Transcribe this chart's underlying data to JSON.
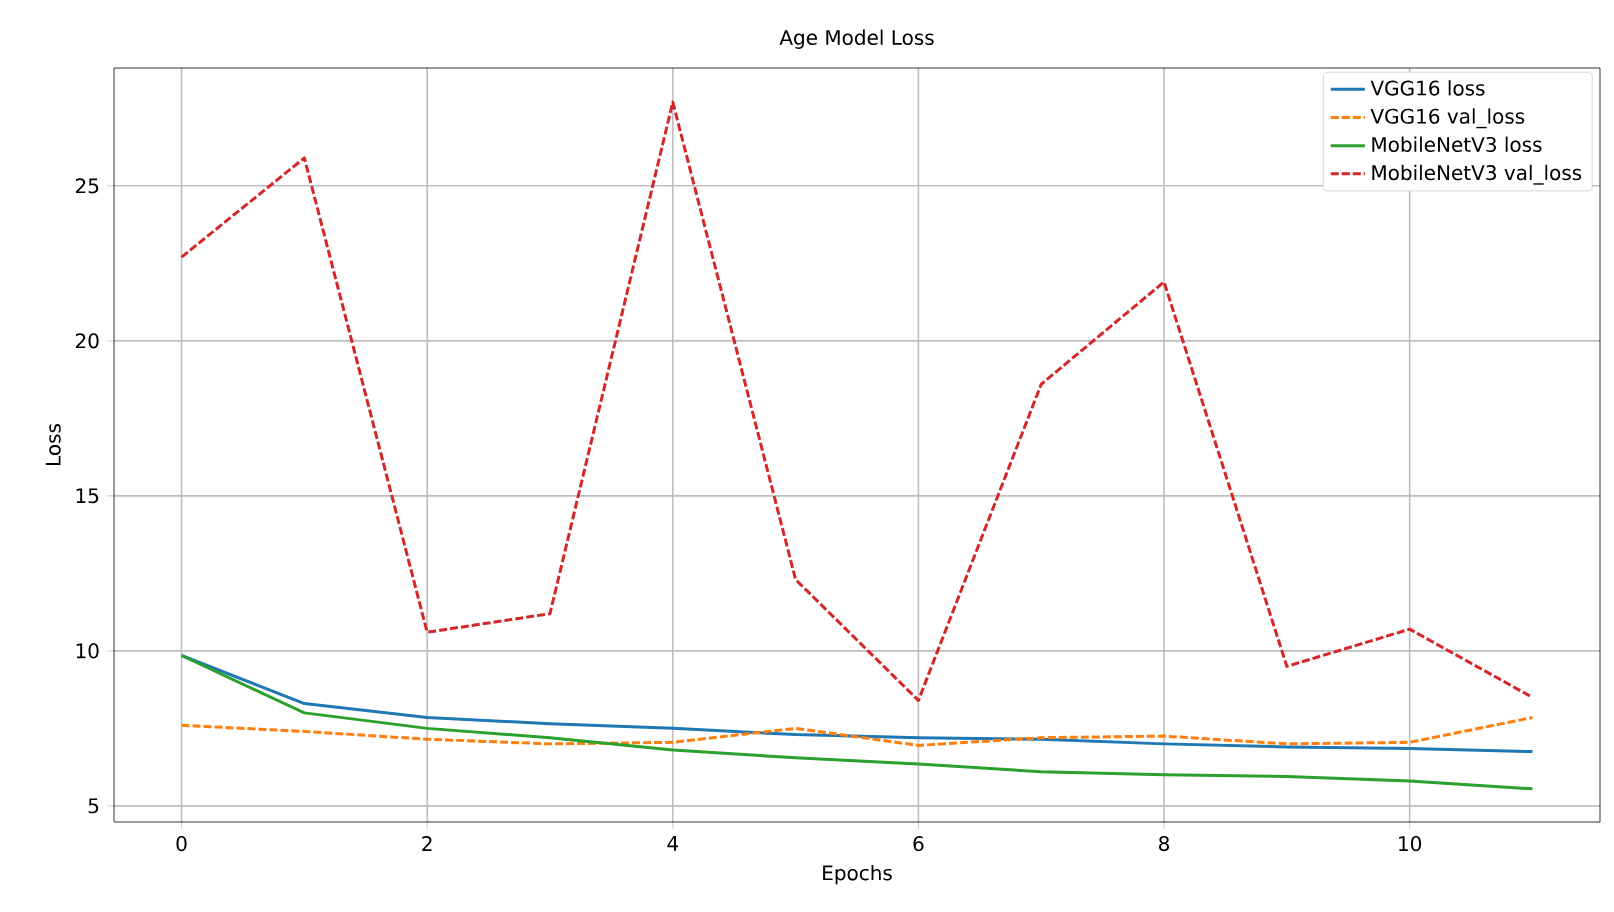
{
  "chart_data": {
    "type": "line",
    "title": "Age Model Loss",
    "xlabel": "Epochs",
    "ylabel": "Loss",
    "x": [
      0,
      1,
      2,
      3,
      4,
      5,
      6,
      7,
      8,
      9,
      10,
      11
    ],
    "series": [
      {
        "name": "VGG16 loss",
        "color": "#1f77b4",
        "line_style": "solid",
        "values": [
          9.85,
          8.3,
          7.85,
          7.65,
          7.5,
          7.3,
          7.2,
          7.15,
          7.0,
          6.9,
          6.85,
          6.75
        ]
      },
      {
        "name": "VGG16 val_loss",
        "color": "#ff7f0e",
        "line_style": "dashed",
        "values": [
          7.6,
          7.4,
          7.15,
          7.0,
          7.05,
          7.5,
          6.95,
          7.2,
          7.25,
          7.0,
          7.05,
          7.85
        ]
      },
      {
        "name": "MobileNetV3 loss",
        "color": "#2ca02c",
        "line_style": "solid",
        "values": [
          9.85,
          8.0,
          7.5,
          7.2,
          6.8,
          6.55,
          6.35,
          6.1,
          6.0,
          5.95,
          5.8,
          5.55
        ]
      },
      {
        "name": "MobileNetV3 val_loss",
        "color": "#d62728",
        "line_style": "dashed",
        "values": [
          22.7,
          25.9,
          10.6,
          11.2,
          27.7,
          12.3,
          8.4,
          18.6,
          21.9,
          9.5,
          10.7,
          8.5
        ]
      }
    ],
    "xlim": [
      -0.55,
      11.55
    ],
    "ylim": [
      4.48,
      28.8
    ],
    "xticks": [
      0,
      2,
      4,
      6,
      8,
      10
    ],
    "yticks": [
      5,
      10,
      15,
      20,
      25
    ],
    "grid": true,
    "legend": "top right",
    "marker": "none"
  }
}
